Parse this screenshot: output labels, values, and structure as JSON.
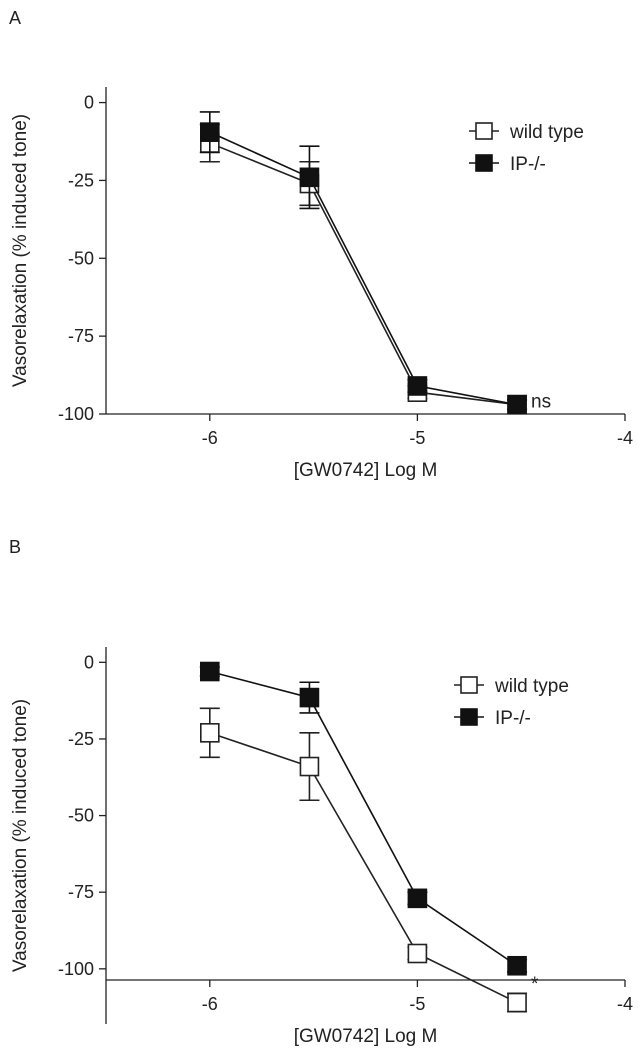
{
  "chart_data": [
    {
      "type": "line",
      "panel_label": "A",
      "xlabel": "[GW0742] Log M",
      "ylabel": "Vasorelaxation (% induced tone)",
      "xlim": [
        -6.5,
        -4
      ],
      "ylim": [
        -100,
        5
      ],
      "xticks": [
        -6,
        -5,
        -4
      ],
      "yticks": [
        0,
        -25,
        -50,
        -75,
        -100
      ],
      "legend_position": "top-right",
      "grid": false,
      "series": [
        {
          "name": "wild type",
          "marker": "open-square",
          "color": "#222222",
          "x": [
            -6,
            -5.52,
            -5,
            -4.52
          ],
          "y": [
            -13,
            -26,
            -93,
            -97
          ],
          "err": [
            6,
            7,
            2,
            1.5
          ]
        },
        {
          "name": "IP-/-",
          "marker": "filled-square",
          "color": "#111111",
          "x": [
            -6,
            -5.52,
            -5,
            -4.52
          ],
          "y": [
            -9.5,
            -24,
            -91,
            -97
          ],
          "err": [
            6.5,
            10,
            2,
            1.5
          ]
        }
      ],
      "annotations": [
        {
          "text": "ns",
          "x": -4.52,
          "y": -96
        }
      ]
    },
    {
      "type": "line",
      "panel_label": "B",
      "xlabel": "[GW0742] Log M",
      "ylabel": "Vasorelaxation (% induced tone)",
      "xlim": [
        -6.5,
        -4
      ],
      "ylim": [
        -118,
        5
      ],
      "xticks": [
        -6,
        -5,
        -4
      ],
      "yticks": [
        0,
        -25,
        -50,
        -75,
        -100
      ],
      "legend_position": "top-right",
      "grid": false,
      "series": [
        {
          "name": "wild type",
          "marker": "open-square",
          "color": "#222222",
          "x": [
            -6,
            -5.52,
            -5,
            -4.52
          ],
          "y": [
            -23,
            -34,
            -95,
            -111
          ],
          "err": [
            8,
            11,
            2,
            3
          ]
        },
        {
          "name": "IP-/-",
          "marker": "filled-square",
          "color": "#111111",
          "x": [
            -6,
            -5.52,
            -5,
            -4.52
          ],
          "y": [
            -3,
            -11.5,
            -77,
            -99
          ],
          "err": [
            1.5,
            5,
            2,
            2
          ]
        }
      ],
      "annotations": [
        {
          "text": "*",
          "x": -4.52,
          "y": -105
        }
      ]
    }
  ]
}
